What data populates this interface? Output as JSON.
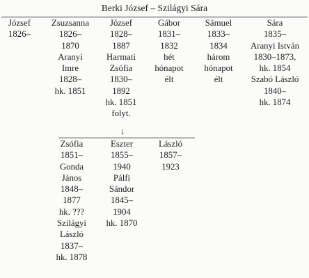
{
  "title": "Berki József – Szilágyi Sára",
  "parent_generation": [
    {
      "key": "jozsef_sr",
      "lines": [
        "József",
        "1826–"
      ]
    },
    {
      "key": "zsuzsanna",
      "lines": [
        "Zsuzsanna",
        "1826–",
        "1870",
        "Aranyi",
        "Imre",
        "1828–",
        "hk. 1851"
      ]
    },
    {
      "key": "jozsef_jr",
      "lines": [
        "József",
        "1828–",
        "1887",
        "Harmati",
        "Zsófia",
        "1830–",
        "1892",
        "hk. 1851",
        "folyt."
      ]
    },
    {
      "key": "gabor",
      "lines": [
        "Gábor",
        "1831–",
        "1832",
        "hét",
        "hónapot",
        "élt"
      ]
    },
    {
      "key": "samuel",
      "lines": [
        "Sámuel",
        "1833–",
        "1834",
        "három",
        "hónapot",
        "élt"
      ]
    },
    {
      "key": "sara",
      "lines": [
        "Sára",
        "1835–",
        "Aranyi István",
        "1830–1873,",
        "hk. 1854",
        "Szabó László",
        "1840–",
        "hk. 1874"
      ]
    }
  ],
  "arrow": "↓",
  "child_generation": [
    {
      "key": "zsofia",
      "lines": [
        "Zsófia",
        "1851–",
        "Gonda",
        "János",
        "1848–",
        "1877",
        "hk. ???",
        "Szilágyi",
        "László",
        "1837–",
        "hk. 1878"
      ]
    },
    {
      "key": "eszter",
      "lines": [
        "Eszter",
        "1855–",
        "1940",
        "Pálfi",
        "Sándor",
        "1845–",
        "1904",
        "hk. 1870"
      ]
    },
    {
      "key": "laszlo",
      "lines": [
        "László",
        "1857–",
        "1923"
      ]
    }
  ]
}
